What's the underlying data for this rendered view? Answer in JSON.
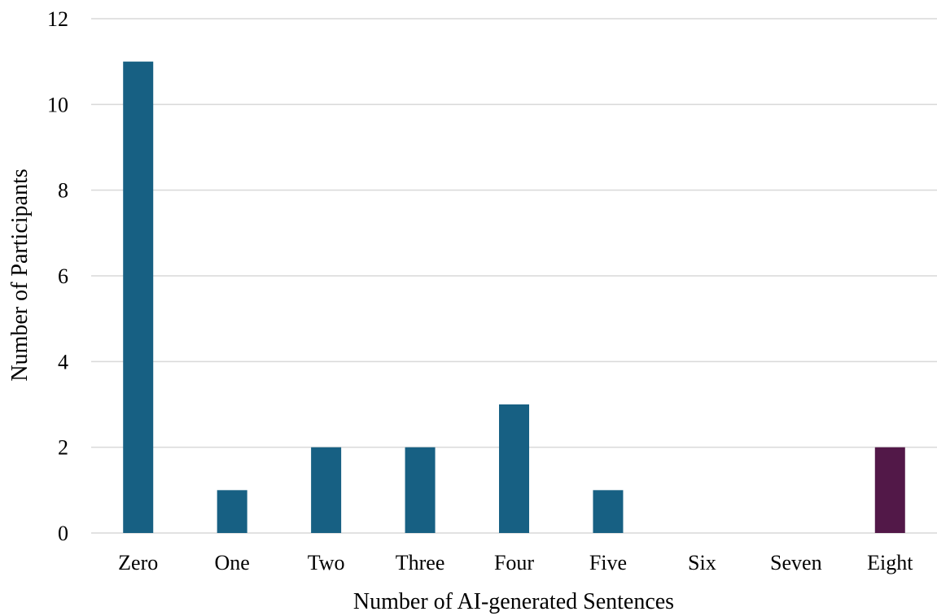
{
  "chart_data": {
    "type": "bar",
    "title": "",
    "xlabel": "Number of AI-generated Sentences",
    "ylabel": "Number of Participants",
    "categories": [
      "Zero",
      "One",
      "Two",
      "Three",
      "Four",
      "Five",
      "Six",
      "Seven",
      "Eight"
    ],
    "values": [
      11,
      1,
      2,
      2,
      3,
      1,
      0,
      0,
      2
    ],
    "bar_colors": [
      "#176083",
      "#176083",
      "#176083",
      "#176083",
      "#176083",
      "#176083",
      "#176083",
      "#176083",
      "#521848"
    ],
    "ylim": [
      0,
      12
    ],
    "yticks": [
      "0",
      "2",
      "4",
      "6",
      "8",
      "10",
      "12"
    ],
    "grid": true,
    "grid_color": "#d9d9d9"
  }
}
